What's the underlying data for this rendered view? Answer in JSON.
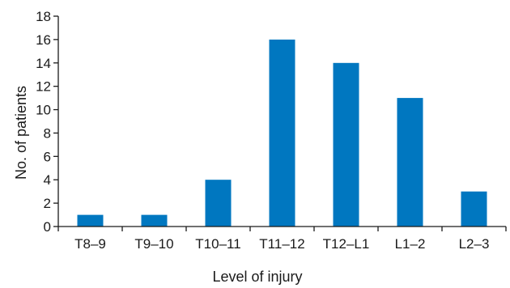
{
  "chart_data": {
    "type": "bar",
    "categories": [
      "T8–9",
      "T9–10",
      "T10–11",
      "T11–12",
      "T12–L1",
      "L1–2",
      "L2–3"
    ],
    "values": [
      1,
      1,
      4,
      16,
      14,
      11,
      3
    ],
    "xlabel": "Level of injury",
    "ylabel": "No. of patients",
    "ylim": [
      0,
      18
    ],
    "yticks": [
      0,
      2,
      4,
      6,
      8,
      10,
      12,
      14,
      16,
      18
    ],
    "grid": false,
    "legend": "none",
    "bar_color": "#0077c0",
    "axis_color": "#1a1a1a"
  }
}
